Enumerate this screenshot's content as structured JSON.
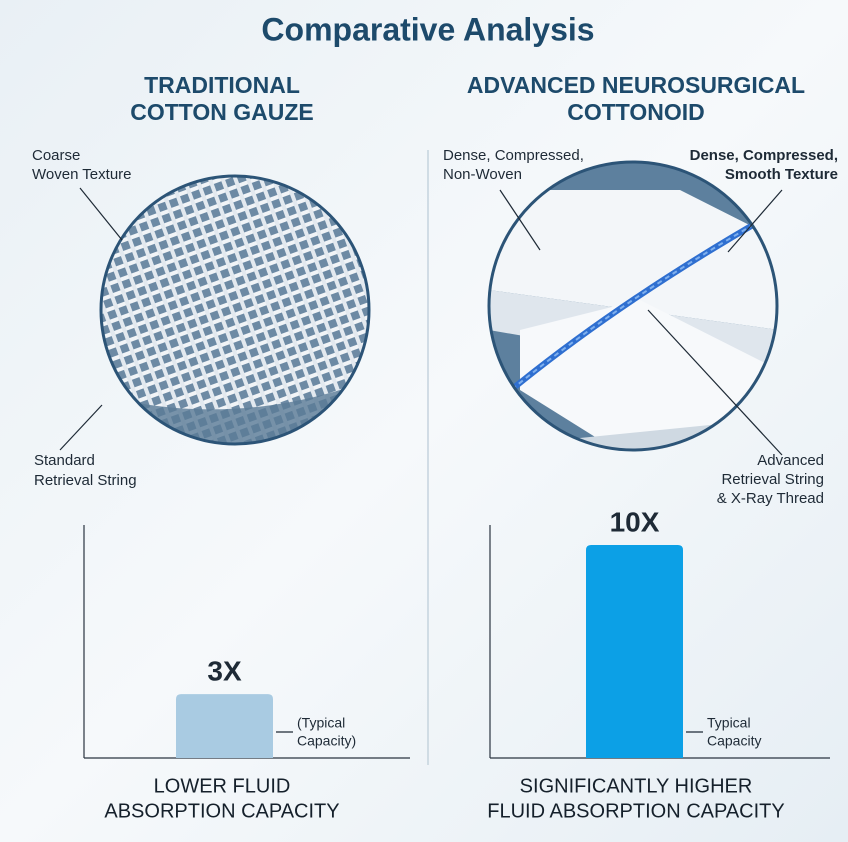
{
  "title": "Comparative Analysis",
  "panels": [
    {
      "heading": [
        "TRADITIONAL",
        "COTTON GAUZE"
      ],
      "callouts": [
        [
          "Coarse",
          "Woven Texture"
        ],
        [
          "Standard",
          "Retrieval String"
        ]
      ],
      "chart": {
        "values": [
          3
        ],
        "value_labels": [
          "3X"
        ],
        "color": "#a9cbe2",
        "note": [
          "(Typical",
          "Capacity)"
        ],
        "caption": [
          "LOWER FLUID",
          "ABSORPTION CAPACITY"
        ]
      }
    },
    {
      "heading": [
        "ADVANCED NEUROSURGICAL",
        "COTTONOID"
      ],
      "callouts": [
        [
          "Dense, Compressed,",
          "Non-Woven"
        ],
        [
          "Dense, Compressed,",
          "Smooth Texture"
        ],
        [
          "Advanced",
          "Retrieval String",
          "& X-Ray Thread"
        ]
      ],
      "chart": {
        "values": [
          10
        ],
        "value_labels": [
          "10X"
        ],
        "color": "#0ca0e6",
        "note": [
          "Typical",
          "Capacity"
        ],
        "caption": [
          "SIGNIFICANTLY HIGHER",
          "FLUID ABSORPTION CAPACITY"
        ]
      }
    }
  ]
}
